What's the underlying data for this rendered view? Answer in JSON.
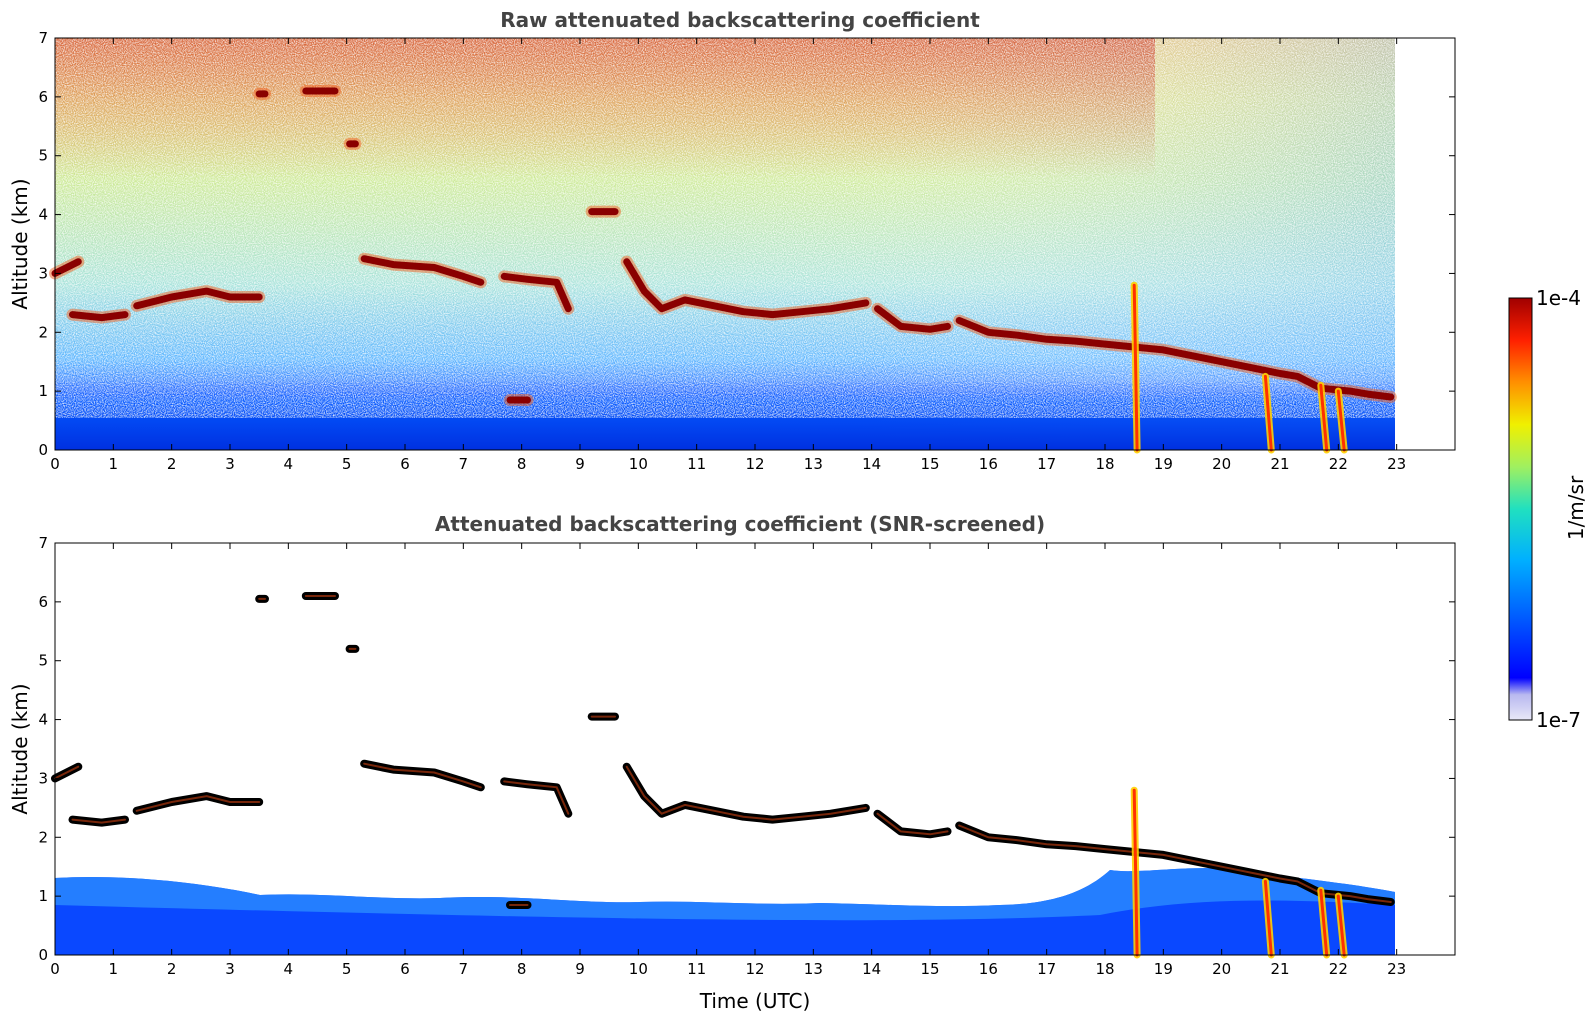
{
  "chart_data": [
    {
      "type": "heatmap",
      "title": "Raw attenuated backscattering coefficient",
      "xlabel": "",
      "ylabel": "Altitude (km)",
      "xlim": [
        0,
        24
      ],
      "ylim": [
        0,
        7
      ],
      "xticks": [
        0,
        1,
        2,
        3,
        4,
        5,
        6,
        7,
        8,
        9,
        10,
        11,
        12,
        13,
        14,
        15,
        16,
        17,
        18,
        19,
        20,
        21,
        22,
        23
      ],
      "yticks": [
        0,
        1,
        2,
        3,
        4,
        5,
        6,
        7
      ],
      "data_time_range": [
        0,
        22.9
      ],
      "screened": false,
      "layers": [
        {
          "type": "cloud",
          "points": [
            [
              0,
              3.0
            ],
            [
              0.4,
              3.2
            ]
          ]
        },
        {
          "type": "cloud",
          "points": [
            [
              0.3,
              2.3
            ],
            [
              0.8,
              2.25
            ],
            [
              1.2,
              2.3
            ]
          ]
        },
        {
          "type": "cloud",
          "points": [
            [
              1.4,
              2.45
            ],
            [
              2.0,
              2.6
            ],
            [
              2.6,
              2.7
            ],
            [
              3.0,
              2.6
            ],
            [
              3.5,
              2.6
            ]
          ]
        },
        {
          "type": "cloud",
          "points": [
            [
              5.3,
              3.25
            ],
            [
              5.8,
              3.15
            ],
            [
              6.5,
              3.1
            ],
            [
              7.0,
              2.95
            ],
            [
              7.3,
              2.85
            ]
          ]
        },
        {
          "type": "cloud",
          "points": [
            [
              7.7,
              2.95
            ],
            [
              8.1,
              2.9
            ],
            [
              8.6,
              2.85
            ],
            [
              8.8,
              2.4
            ]
          ]
        },
        {
          "type": "cloud",
          "points": [
            [
              9.8,
              3.2
            ],
            [
              10.1,
              2.7
            ],
            [
              10.4,
              2.4
            ],
            [
              10.8,
              2.55
            ],
            [
              11.3,
              2.45
            ],
            [
              11.8,
              2.35
            ],
            [
              12.3,
              2.3
            ],
            [
              12.8,
              2.35
            ],
            [
              13.3,
              2.4
            ],
            [
              13.9,
              2.5
            ]
          ]
        },
        {
          "type": "cloud",
          "points": [
            [
              14.1,
              2.4
            ],
            [
              14.5,
              2.1
            ],
            [
              15.0,
              2.05
            ],
            [
              15.3,
              2.1
            ]
          ]
        },
        {
          "type": "cloud",
          "points": [
            [
              15.5,
              2.2
            ],
            [
              16.0,
              2.0
            ],
            [
              16.5,
              1.95
            ],
            [
              17.0,
              1.88
            ],
            [
              17.5,
              1.85
            ],
            [
              18.0,
              1.8
            ],
            [
              18.5,
              1.75
            ],
            [
              19.0,
              1.7
            ],
            [
              19.5,
              1.6
            ],
            [
              20.0,
              1.5
            ],
            [
              20.5,
              1.4
            ],
            [
              21.0,
              1.3
            ],
            [
              21.3,
              1.25
            ],
            [
              21.7,
              1.05
            ],
            [
              22.2,
              1.0
            ],
            [
              22.5,
              0.95
            ],
            [
              22.9,
              0.9
            ]
          ]
        },
        {
          "type": "cloud",
          "points": [
            [
              4.3,
              6.1
            ],
            [
              4.8,
              6.1
            ]
          ]
        },
        {
          "type": "cloud",
          "points": [
            [
              3.5,
              6.05
            ],
            [
              3.6,
              6.05
            ]
          ]
        },
        {
          "type": "cloud",
          "points": [
            [
              5.05,
              5.2
            ],
            [
              5.15,
              5.2
            ]
          ]
        },
        {
          "type": "cloud",
          "points": [
            [
              9.2,
              4.05
            ],
            [
              9.6,
              4.05
            ]
          ]
        },
        {
          "type": "cloud",
          "points": [
            [
              7.8,
              0.85
            ],
            [
              8.1,
              0.85
            ]
          ]
        },
        {
          "type": "precipitation_streak",
          "points": [
            [
              18.5,
              2.8
            ],
            [
              18.55,
              0.0
            ]
          ]
        },
        {
          "type": "precipitation_streak",
          "points": [
            [
              20.75,
              1.25
            ],
            [
              20.85,
              0.0
            ]
          ]
        },
        {
          "type": "precipitation_streak",
          "points": [
            [
              21.7,
              1.1
            ],
            [
              21.8,
              0.0
            ]
          ]
        },
        {
          "type": "precipitation_streak",
          "points": [
            [
              22.0,
              1.0
            ],
            [
              22.1,
              0.0
            ]
          ]
        }
      ]
    },
    {
      "type": "heatmap",
      "title": "Attenuated backscattering coefficient (SNR-screened)",
      "xlabel": "Time (UTC)",
      "ylabel": "Altitude (km)",
      "xlim": [
        0,
        24
      ],
      "ylim": [
        0,
        7
      ],
      "xticks": [
        0,
        1,
        2,
        3,
        4,
        5,
        6,
        7,
        8,
        9,
        10,
        11,
        12,
        13,
        14,
        15,
        16,
        17,
        18,
        19,
        20,
        21,
        22,
        23
      ],
      "yticks": [
        0,
        1,
        2,
        3,
        4,
        5,
        6,
        7
      ],
      "data_time_range": [
        0,
        22.9
      ],
      "screened": true
    }
  ],
  "colorbar": {
    "label": "1/m/sr",
    "min_label": "1e-7",
    "max_label": "1e-4",
    "scale": "log",
    "range": [
      1e-07,
      0.0001
    ],
    "colors": [
      "#e8e8f8",
      "#b8b8f0",
      "#0000ff",
      "#0060ff",
      "#00b0ff",
      "#20e0c0",
      "#a0f060",
      "#f0f000",
      "#ff9000",
      "#ff2000",
      "#a00000"
    ]
  }
}
